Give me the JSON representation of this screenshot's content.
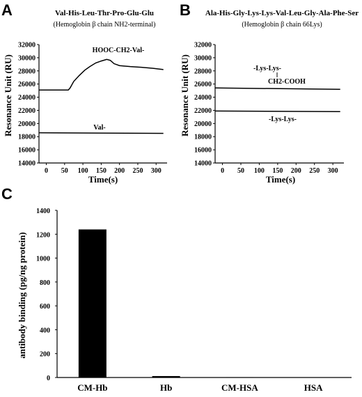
{
  "chart_data": [
    {
      "panel": "A",
      "type": "line",
      "title": "Val-His-Leu-Thr-Pro-Glu-Glu",
      "subtitle": "(Hemoglobin β chain NH2-terminal)",
      "xlabel": "Time(s)",
      "ylabel": "Resonance Unit (RU)",
      "xlim": [
        -20,
        330
      ],
      "ylim": [
        14000,
        32000
      ],
      "xticks": [
        0,
        50,
        100,
        150,
        200,
        250,
        300
      ],
      "yticks": [
        14000,
        16000,
        18000,
        20000,
        22000,
        24000,
        26000,
        28000,
        30000,
        32000
      ],
      "series": [
        {
          "name": "HOOC-CH2-Val-",
          "x": [
            -20,
            60,
            65,
            75,
            90,
            105,
            120,
            135,
            150,
            165,
            175,
            185,
            200,
            230,
            260,
            290,
            320
          ],
          "y": [
            25100,
            25100,
            25400,
            26400,
            27300,
            28100,
            28700,
            29200,
            29500,
            29750,
            29600,
            29100,
            28800,
            28650,
            28550,
            28400,
            28200
          ]
        },
        {
          "name": "Val-",
          "x": [
            -20,
            320
          ],
          "y": [
            18600,
            18500
          ]
        }
      ]
    },
    {
      "panel": "B",
      "type": "line",
      "title": "Ala-His-Gly-Lys-Lys-Val-Leu-Gly-Ala-Phe-Ser",
      "subtitle": "(Hemoglobin β chain 66Lys)",
      "xlabel": "Time(s)",
      "ylabel": "Resonance Unit (RU)",
      "xlim": [
        -20,
        330
      ],
      "ylim": [
        14000,
        32000
      ],
      "xticks": [
        0,
        50,
        100,
        150,
        200,
        250,
        300
      ],
      "yticks": [
        14000,
        16000,
        18000,
        20000,
        22000,
        24000,
        26000,
        28000,
        30000,
        32000
      ],
      "annotation_top": "-Lys-Lys-",
      "annotation_branch": "CH2-COOH",
      "series": [
        {
          "name": "-Lys-Lys-(CH2-COOH)",
          "x": [
            -20,
            320
          ],
          "y": [
            25400,
            25200
          ]
        },
        {
          "name": "-Lys-Lys-",
          "x": [
            -20,
            320
          ],
          "y": [
            21900,
            21800
          ]
        }
      ]
    },
    {
      "panel": "C",
      "type": "bar",
      "categories": [
        "CM-Hb",
        "Hb",
        "CM-HSA",
        "HSA"
      ],
      "values": [
        1240,
        12,
        3,
        0
      ],
      "ylabel": "antibody binding (pg/ng protein)",
      "ylim": [
        0,
        1400
      ],
      "yticks": [
        0,
        200,
        400,
        600,
        800,
        1000,
        1200,
        1400
      ]
    }
  ]
}
